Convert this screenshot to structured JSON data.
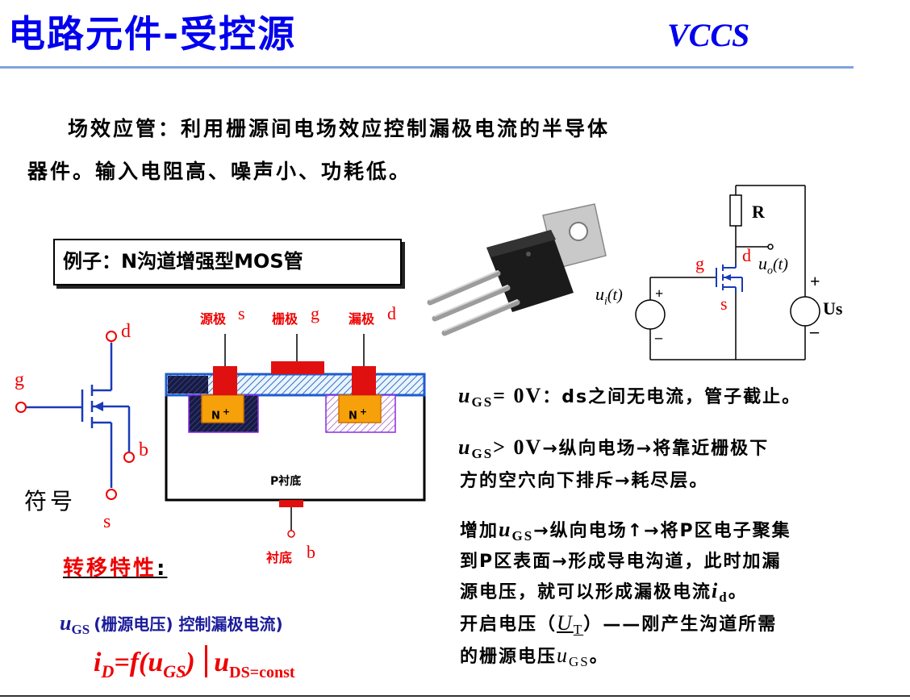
{
  "title": "电路元件-受控源",
  "title_tag": "VCCS",
  "intro": {
    "line1": "场效应管：利用栅源间电场效应控制漏极电流的半导体",
    "line2": "器件。输入电阻高、噪声小、功耗低。"
  },
  "example_box": "例子：N沟道增强型MOS管",
  "symbol": {
    "d": "d",
    "g": "g",
    "b": "b",
    "s": "s",
    "caption": "符号"
  },
  "cross_section": {
    "source_label": "源极",
    "source_letter": "s",
    "gate_label": "栅极",
    "gate_letter": "g",
    "drain_label": "漏极",
    "drain_letter": "d",
    "n_left": "N",
    "n_right": "N",
    "plus": "+",
    "substrate": "P衬底",
    "body_label": "衬底",
    "body_letter": "b"
  },
  "circuit": {
    "R": "R",
    "g": "g",
    "d": "d",
    "s": "s",
    "ui": "u",
    "ui_sub": "i",
    "t": "(t)",
    "uo": "u",
    "uo_sub": "o",
    "Us": "Us",
    "plus": "+",
    "minus": "–"
  },
  "statements": {
    "s1_u": "u",
    "s1_sub": "GS",
    "s1_rel": "= 0V",
    "s1_text": "：ds之间无电流，管子截止。",
    "s2_u": "u",
    "s2_sub": "GS",
    "s2_rel": "> 0V",
    "s2_text": "→纵向电场→将靠近栅极下",
    "s2_line2": "方的空穴向下排斥→耗尽层。",
    "s3_pre": "增加",
    "s3_u": "u",
    "s3_sub": "GS",
    "s3_text": "→纵向电场↑→将P区电子聚集",
    "s3_line2": "到P区表面→形成导电沟道，此时加漏",
    "s3_line3_pre": "源电压，就可以形成漏极电流",
    "s3_id": "i",
    "s3_id_sub": "d",
    "s3_line3_end": "。",
    "s4_pre": "开启电压（",
    "s4_U": "U",
    "s4_sub": "T",
    "s4_text": "）——刚产生沟道所需",
    "s4_line2_pre": "的栅源电压",
    "s4_u": "u",
    "s4_u_sub": "GS",
    "s4_end": "。"
  },
  "transfer": {
    "title": "转移特性",
    "colon": ":",
    "note_u": "u",
    "note_sub": "GS",
    "note_text": "(栅源电压) 控制漏极电流)",
    "f_i": "i",
    "f_isub": "D",
    "f_mid": "=f(u",
    "f_gs": "GS",
    "f_close": ")",
    "f_u": "u",
    "f_usub": "DS=const"
  },
  "colors": {
    "title_blue": "#0000ee",
    "accent_red": "#ee0000",
    "rule_blue": "#7fa3e0",
    "note_navy": "#1b1b9a"
  }
}
